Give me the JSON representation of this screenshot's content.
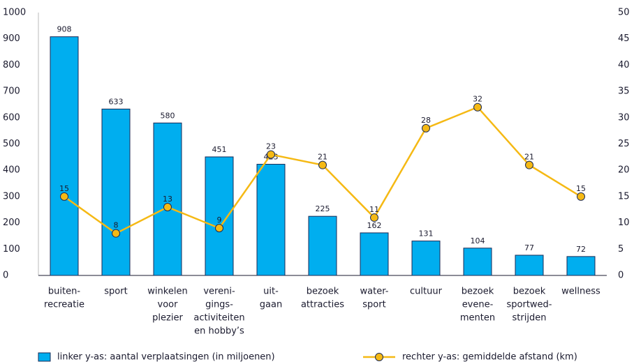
{
  "chart_data": {
    "type": "bar-line",
    "categories": [
      [
        "buiten-",
        "recreatie"
      ],
      [
        "sport"
      ],
      [
        "winkelen",
        "voor",
        "plezier"
      ],
      [
        "vereni-",
        "gings-",
        "activiteiten",
        "en hobby’s"
      ],
      [
        "uit-",
        "gaan"
      ],
      [
        "bezoek",
        "attracties"
      ],
      [
        "water-",
        "sport"
      ],
      [
        "cultuur"
      ],
      [
        "bezoek",
        "evene-",
        "menten"
      ],
      [
        "bezoek",
        "sportwed-",
        "strijden"
      ],
      [
        "wellness"
      ]
    ],
    "series": [
      {
        "name": "linker y-as: aantal verplaatsingen (in miljoenen)",
        "type": "bar",
        "axis": "y",
        "color": "#00aeef",
        "values": [
          908,
          633,
          580,
          451,
          423,
          225,
          162,
          131,
          104,
          77,
          72
        ]
      },
      {
        "name": "rechter y-as: gemiddelde afstand (km)",
        "type": "line",
        "axis": "y2",
        "color": "#f5b914",
        "values": [
          15,
          8,
          13,
          9,
          23,
          21,
          11,
          28,
          32,
          21,
          15
        ]
      }
    ],
    "ylim": [
      0,
      1000
    ],
    "yticks": [
      0,
      100,
      200,
      300,
      400,
      500,
      600,
      700,
      800,
      900,
      1000
    ],
    "y2lim": [
      0,
      50
    ],
    "y2ticks": [
      0,
      5,
      10,
      15,
      20,
      25,
      30,
      35,
      40,
      45,
      50
    ],
    "grid": false
  }
}
